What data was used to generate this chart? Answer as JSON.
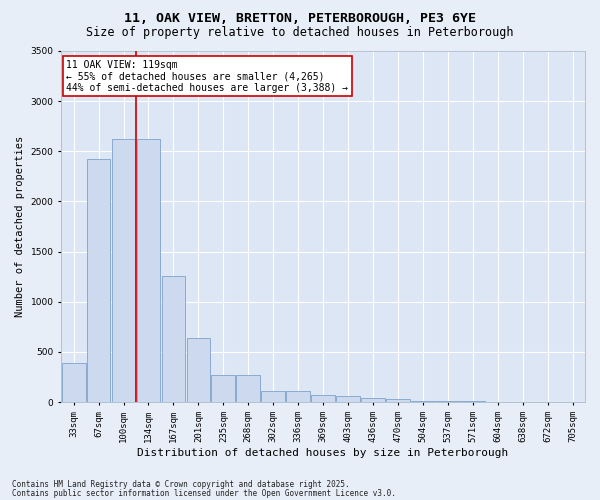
{
  "title1": "11, OAK VIEW, BRETTON, PETERBOROUGH, PE3 6YE",
  "title2": "Size of property relative to detached houses in Peterborough",
  "xlabel": "Distribution of detached houses by size in Peterborough",
  "ylabel": "Number of detached properties",
  "categories": [
    "33sqm",
    "67sqm",
    "100sqm",
    "134sqm",
    "167sqm",
    "201sqm",
    "235sqm",
    "268sqm",
    "302sqm",
    "336sqm",
    "369sqm",
    "403sqm",
    "436sqm",
    "470sqm",
    "504sqm",
    "537sqm",
    "571sqm",
    "604sqm",
    "638sqm",
    "672sqm",
    "705sqm"
  ],
  "values": [
    390,
    2420,
    2620,
    2620,
    1260,
    640,
    270,
    270,
    110,
    110,
    75,
    60,
    45,
    30,
    15,
    10,
    6,
    4,
    3,
    2,
    1
  ],
  "bar_color": "#ccd9ee",
  "bar_edge_color": "#8aaad0",
  "vline_x": 2.48,
  "vline_color": "#cc0000",
  "annotation_text": "11 OAK VIEW: 119sqm\n← 55% of detached houses are smaller (4,265)\n44% of semi-detached houses are larger (3,388) →",
  "annotation_box_color": "#ffffff",
  "annotation_box_edge": "#cc0000",
  "ylim": [
    0,
    3500
  ],
  "yticks": [
    0,
    500,
    1000,
    1500,
    2000,
    2500,
    3000,
    3500
  ],
  "footer1": "Contains HM Land Registry data © Crown copyright and database right 2025.",
  "footer2": "Contains public sector information licensed under the Open Government Licence v3.0.",
  "bg_color": "#e8eef8",
  "plot_bg_color": "#dce6f5",
  "grid_color": "#ffffff",
  "title_fontsize": 9.5,
  "subtitle_fontsize": 8.5,
  "ylabel_fontsize": 7.5,
  "xlabel_fontsize": 8,
  "tick_fontsize": 6.5,
  "annotation_fontsize": 7,
  "footer_fontsize": 5.5
}
